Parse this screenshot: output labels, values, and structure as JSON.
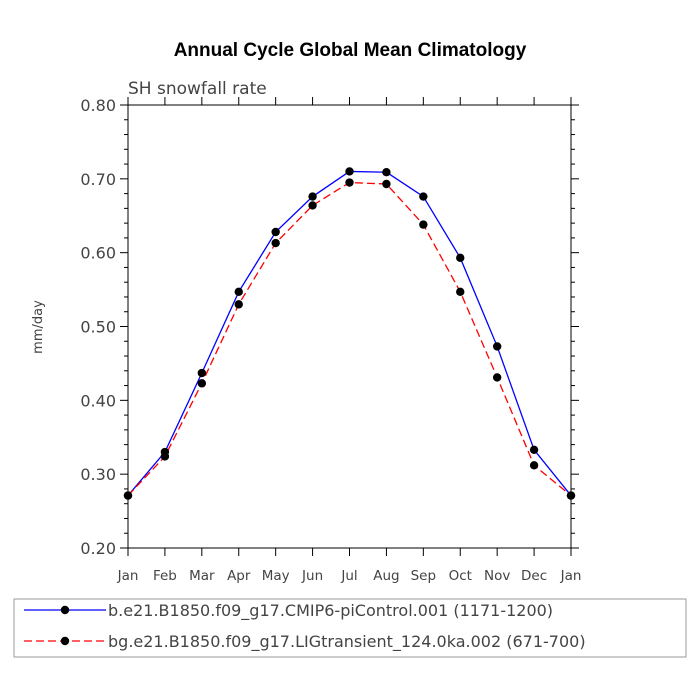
{
  "chart_data": {
    "type": "line",
    "title": "Annual Cycle Global Mean Climatology",
    "subtitle": "SH snowfall rate",
    "ylabel": "mm/day",
    "xlabel": "",
    "ylim": [
      0.2,
      0.8
    ],
    "yticks": [
      "0.20",
      "0.30",
      "0.40",
      "0.50",
      "0.60",
      "0.70",
      "0.80"
    ],
    "categories": [
      "Jan",
      "Feb",
      "Mar",
      "Apr",
      "May",
      "Jun",
      "Jul",
      "Aug",
      "Sep",
      "Oct",
      "Nov",
      "Dec",
      "Jan"
    ],
    "grid": false,
    "legend_placement": "bottom",
    "series": [
      {
        "name": "b.e21.B1850.f09_g17.CMIP6-piControl.001 (1171-1200)",
        "color": "#0000ff",
        "dash": "solid",
        "values": [
          0.271,
          0.33,
          0.437,
          0.547,
          0.628,
          0.676,
          0.71,
          0.709,
          0.676,
          0.593,
          0.473,
          0.333,
          0.271
        ]
      },
      {
        "name": "bg.e21.B1850.f09_g17.LIGtransient_124.0ka.002 (671-700)",
        "color": "#ff0000",
        "dash": "dashed",
        "values": [
          0.271,
          0.324,
          0.423,
          0.53,
          0.613,
          0.664,
          0.695,
          0.693,
          0.638,
          0.547,
          0.431,
          0.312,
          0.271
        ]
      }
    ]
  }
}
